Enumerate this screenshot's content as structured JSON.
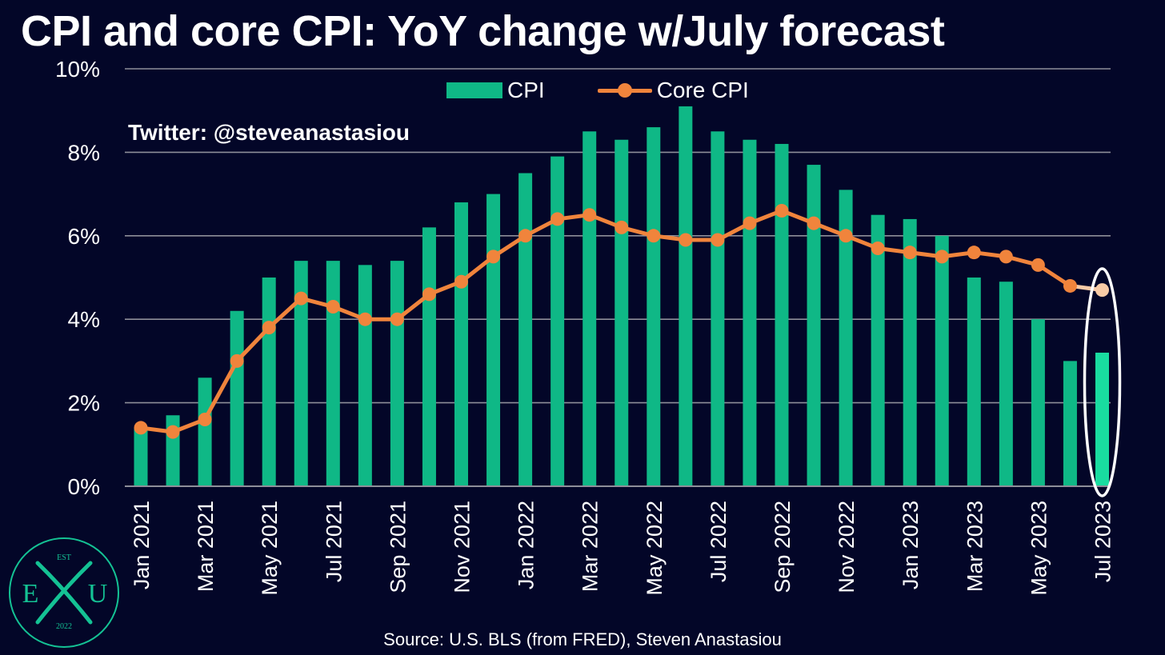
{
  "title": "CPI and core CPI: YoY change w/July forecast",
  "watermark": "Twitter: @steveanastasiou",
  "source": "Source: U.S. BLS (from FRED), Steven Anastasiou",
  "logo": {
    "top_text": "EST",
    "letter_left": "E",
    "letter_right": "U",
    "bottom_text": "2022"
  },
  "colors": {
    "background": "#030628",
    "cpi_bar": "#0fb886",
    "cpi_bar_forecast": "#19dca0",
    "core_line": "#f0843c",
    "core_forecast": "#f8cba6",
    "grid": "#8e8e99",
    "highlight": "#ffffff",
    "logo": "#14c294"
  },
  "chart_data": {
    "type": "bar",
    "title": "CPI and core CPI: YoY change w/July forecast",
    "categories": [
      "Jan 2021",
      "Feb 2021",
      "Mar 2021",
      "Apr 2021",
      "May 2021",
      "Jun 2021",
      "Jul 2021",
      "Aug 2021",
      "Sep 2021",
      "Oct 2021",
      "Nov 2021",
      "Dec 2021",
      "Jan 2022",
      "Feb 2022",
      "Mar 2022",
      "Apr 2022",
      "May 2022",
      "Jun 2022",
      "Jul 2022",
      "Aug 2022",
      "Sep 2022",
      "Oct 2022",
      "Nov 2022",
      "Dec 2022",
      "Jan 2023",
      "Feb 2023",
      "Mar 2023",
      "Apr 2023",
      "May 2023",
      "Jun 2023",
      "Jul 2023"
    ],
    "tick_labels": [
      "Jan 2021",
      "Mar 2021",
      "May 2021",
      "Jul 2021",
      "Sep 2021",
      "Nov 2021",
      "Jan 2022",
      "Mar 2022",
      "May 2022",
      "Jul 2022",
      "Sep 2022",
      "Nov 2022",
      "Jan 2023",
      "Mar 2023",
      "May 2023",
      "Jul 2023"
    ],
    "series": [
      {
        "name": "CPI",
        "type": "bar",
        "values": [
          1.4,
          1.7,
          2.6,
          4.2,
          5.0,
          5.4,
          5.4,
          5.3,
          5.4,
          6.2,
          6.8,
          7.0,
          7.5,
          7.9,
          8.5,
          8.3,
          8.6,
          9.1,
          8.5,
          8.3,
          8.2,
          7.7,
          7.1,
          6.5,
          6.4,
          6.0,
          5.0,
          4.9,
          4.0,
          3.0,
          3.2
        ],
        "forecast_from_index": 30
      },
      {
        "name": "Core CPI",
        "type": "line",
        "values": [
          1.4,
          1.3,
          1.6,
          3.0,
          3.8,
          4.5,
          4.3,
          4.0,
          4.0,
          4.6,
          4.9,
          5.5,
          6.0,
          6.4,
          6.5,
          6.2,
          6.0,
          5.9,
          5.9,
          6.3,
          6.6,
          6.3,
          6.0,
          5.7,
          5.6,
          5.5,
          5.6,
          5.5,
          5.3,
          4.8,
          4.7
        ],
        "forecast_from_index": 30
      }
    ],
    "y_ticks": [
      "0%",
      "2%",
      "4%",
      "6%",
      "8%",
      "10%"
    ],
    "ylim": [
      0,
      10
    ],
    "grid": true,
    "legend": "top-center",
    "highlight": "Jul 2023"
  }
}
